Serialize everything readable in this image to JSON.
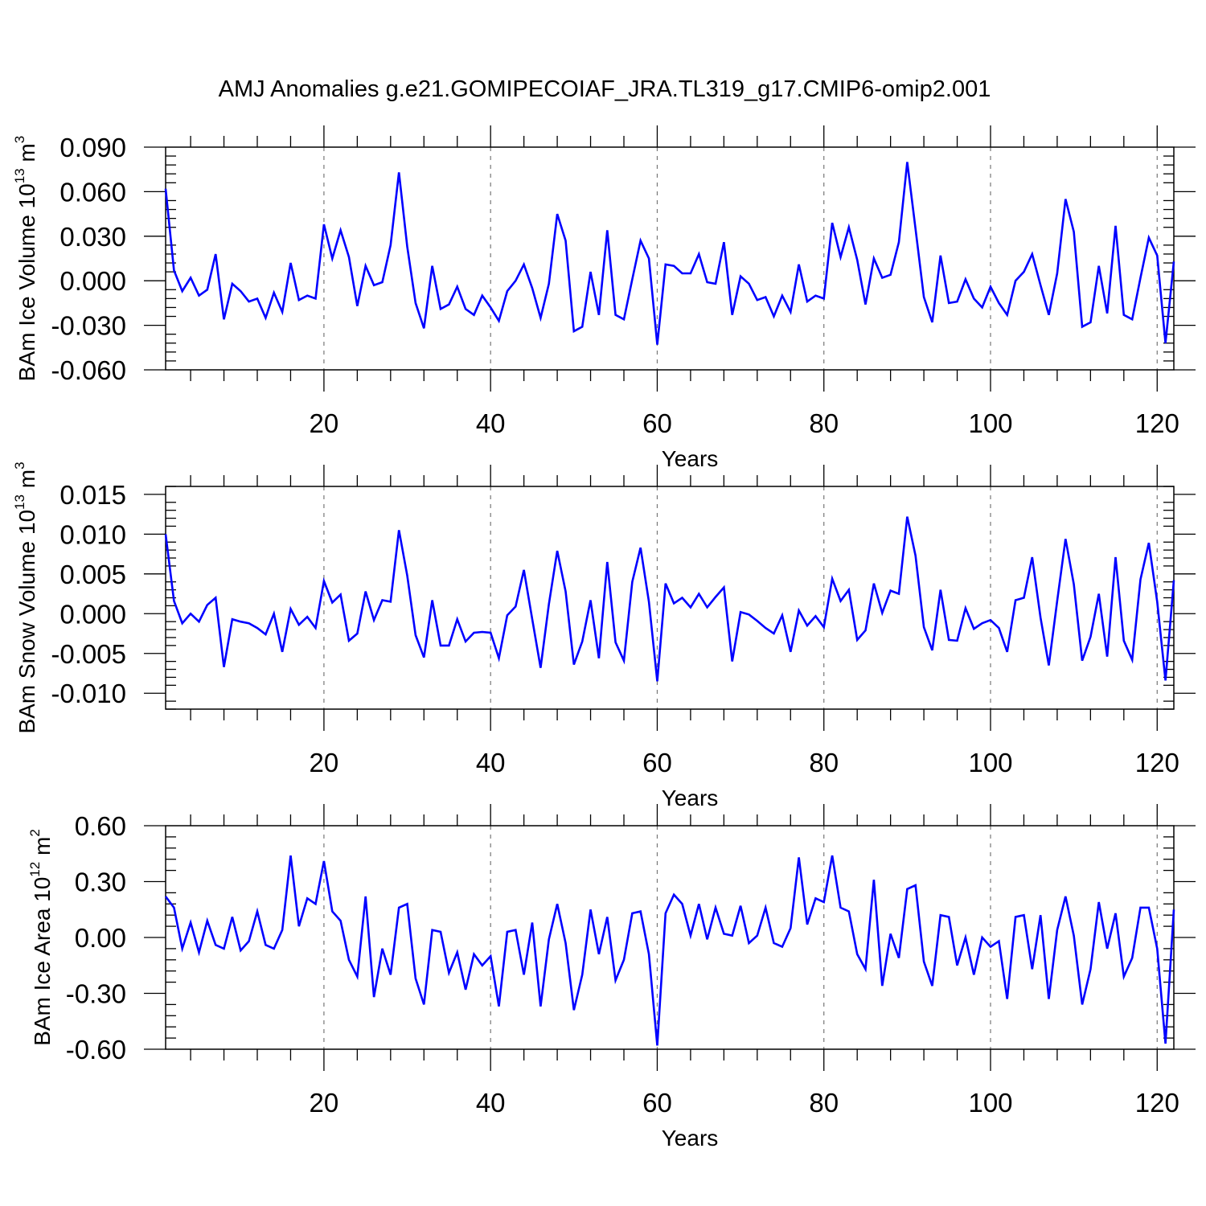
{
  "title": "AMJ Anomalies g.e21.GOMIPECOIAF_JRA.TL319_g17.CMIP6-omip2.001",
  "colors": {
    "line": "#0000ff",
    "grid": "#777777",
    "axes": "#000000",
    "background": "#ffffff"
  },
  "chart_data": [
    {
      "type": "line",
      "ylabel": "BAm Ice Volume 10",
      "ylabel_exp": "13",
      "ylabel_unit": " m",
      "ylabel_unit_exp": "3",
      "xlabel": "Years",
      "xlim": [
        1,
        122
      ],
      "ylim": [
        -0.06,
        0.09
      ],
      "xticks": [
        20,
        40,
        60,
        80,
        100,
        120
      ],
      "xtick_labels": [
        "20",
        "40",
        "60",
        "80",
        "100",
        "120"
      ],
      "yticks": [
        -0.06,
        -0.03,
        0.0,
        0.03,
        0.06,
        0.09
      ],
      "ytick_labels": [
        "-0.060",
        "-0.030",
        "0.000",
        "0.030",
        "0.060",
        "0.090"
      ],
      "grid": "vertical dashed lines at major x ticks",
      "series": [
        {
          "values": [
            0.062,
            0.007,
            -0.007,
            0.002,
            -0.01,
            -0.006,
            0.018,
            -0.026,
            -0.002,
            -0.007,
            -0.014,
            -0.012,
            -0.025,
            -0.008,
            -0.021,
            0.012,
            -0.013,
            -0.01,
            -0.012,
            0.038,
            0.015,
            0.034,
            0.016,
            -0.017,
            0.01,
            -0.003,
            -0.001,
            0.024,
            0.073,
            0.023,
            -0.015,
            -0.032,
            0.01,
            -0.019,
            -0.016,
            -0.004,
            -0.019,
            -0.023,
            -0.01,
            -0.018,
            -0.027,
            -0.007,
            0.0,
            0.011,
            -0.005,
            -0.025,
            -0.002,
            0.045,
            0.027,
            -0.034,
            -0.031,
            0.006,
            -0.023,
            0.034,
            -0.023,
            -0.026,
            0.001,
            0.027,
            0.015,
            -0.043,
            0.011,
            0.01,
            0.005,
            0.005,
            0.018,
            -0.001,
            -0.002,
            0.026,
            -0.023,
            0.003,
            -0.002,
            -0.013,
            -0.011,
            -0.024,
            -0.01,
            -0.021,
            0.011,
            -0.014,
            -0.01,
            -0.012,
            0.039,
            0.016,
            0.036,
            0.014,
            -0.016,
            0.015,
            0.002,
            0.004,
            0.026,
            0.08,
            0.035,
            -0.011,
            -0.028,
            0.017,
            -0.015,
            -0.014,
            0.001,
            -0.012,
            -0.018,
            -0.004,
            -0.015,
            -0.023,
            0.0,
            0.006,
            0.018,
            -0.003,
            -0.023,
            0.005,
            0.055,
            0.033,
            -0.031,
            -0.028,
            0.01,
            -0.022,
            0.037,
            -0.023,
            -0.026,
            0.002,
            0.029,
            0.017,
            -0.042,
            0.013
          ]
        }
      ]
    },
    {
      "type": "line",
      "ylabel": "BAm Snow Volume 10",
      "ylabel_exp": "13",
      "ylabel_unit": " m",
      "ylabel_unit_exp": "3",
      "xlabel": "Years",
      "xlim": [
        1,
        122
      ],
      "ylim": [
        -0.012,
        0.016
      ],
      "xticks": [
        20,
        40,
        60,
        80,
        100,
        120
      ],
      "xtick_labels": [
        "20",
        "40",
        "60",
        "80",
        "100",
        "120"
      ],
      "yticks": [
        -0.01,
        -0.005,
        0.0,
        0.005,
        0.01,
        0.015
      ],
      "ytick_labels": [
        "-0.010",
        "-0.005",
        "0.000",
        "0.005",
        "0.010",
        "0.015"
      ],
      "grid": "vertical dashed lines at major x ticks",
      "series": [
        {
          "values": [
            0.01,
            0.0016,
            -0.0012,
            0.0,
            -0.001,
            0.0011,
            0.002,
            -0.0067,
            -0.0007,
            -0.001,
            -0.0012,
            -0.0018,
            -0.0026,
            0.0,
            -0.0048,
            0.0006,
            -0.0014,
            -0.0004,
            -0.0018,
            0.0041,
            0.0014,
            0.0024,
            -0.0034,
            -0.0025,
            0.0028,
            -0.0008,
            0.0017,
            0.0015,
            0.0105,
            0.0048,
            -0.0027,
            -0.0055,
            0.0017,
            -0.004,
            -0.004,
            -0.0007,
            -0.0035,
            -0.0024,
            -0.0023,
            -0.0024,
            -0.0056,
            -0.0002,
            0.0009,
            0.0055,
            -0.0007,
            -0.0068,
            0.0012,
            0.0079,
            0.0028,
            -0.0064,
            -0.0035,
            0.0017,
            -0.0056,
            0.0065,
            -0.0036,
            -0.0059,
            0.004,
            0.0083,
            0.0015,
            -0.0085,
            0.0038,
            0.0013,
            0.002,
            0.0008,
            0.0025,
            0.0008,
            0.0021,
            0.0033,
            -0.006,
            0.0002,
            -0.0001,
            -0.0009,
            -0.0018,
            -0.0025,
            -0.0002,
            -0.0048,
            0.0004,
            -0.0015,
            -0.0003,
            -0.0017,
            0.0044,
            0.0016,
            0.003,
            -0.0033,
            -0.0021,
            0.0038,
            0.0001,
            0.0029,
            0.0025,
            0.0122,
            0.0073,
            -0.0017,
            -0.0046,
            0.003,
            -0.0033,
            -0.0034,
            0.0007,
            -0.0019,
            -0.0012,
            -0.0008,
            -0.0018,
            -0.0048,
            0.0017,
            0.002,
            0.0071,
            -0.0005,
            -0.0065,
            0.0016,
            0.0094,
            0.0037,
            -0.0059,
            -0.0029,
            0.0025,
            -0.0054,
            0.0071,
            -0.0034,
            -0.0058,
            0.0043,
            0.0089,
            0.0015,
            -0.0084,
            0.0042
          ]
        }
      ]
    },
    {
      "type": "line",
      "ylabel": "BAm Ice Area 10",
      "ylabel_exp": "12",
      "ylabel_unit": " m",
      "ylabel_unit_exp": "2",
      "xlabel": "Years",
      "xlim": [
        1,
        122
      ],
      "ylim": [
        -0.6,
        0.6
      ],
      "xticks": [
        20,
        40,
        60,
        80,
        100,
        120
      ],
      "xtick_labels": [
        "20",
        "40",
        "60",
        "80",
        "100",
        "120"
      ],
      "yticks": [
        -0.6,
        -0.3,
        0.0,
        0.3,
        0.6
      ],
      "ytick_labels": [
        "-0.60",
        "-0.30",
        "0.00",
        "0.30",
        "0.60"
      ],
      "grid": "vertical dashed lines at major x ticks",
      "series": [
        {
          "values": [
            0.22,
            0.16,
            -0.06,
            0.08,
            -0.08,
            0.09,
            -0.04,
            -0.06,
            0.11,
            -0.07,
            -0.02,
            0.14,
            -0.04,
            -0.06,
            0.04,
            0.44,
            0.06,
            0.21,
            0.18,
            0.41,
            0.14,
            0.09,
            -0.12,
            -0.21,
            0.22,
            -0.32,
            -0.06,
            -0.2,
            0.16,
            0.18,
            -0.22,
            -0.36,
            0.04,
            0.03,
            -0.19,
            -0.08,
            -0.28,
            -0.09,
            -0.15,
            -0.1,
            -0.37,
            0.03,
            0.04,
            -0.2,
            0.08,
            -0.37,
            -0.01,
            0.18,
            -0.03,
            -0.39,
            -0.2,
            0.15,
            -0.09,
            0.11,
            -0.23,
            -0.12,
            0.13,
            0.14,
            -0.09,
            -0.58,
            0.13,
            0.23,
            0.18,
            0.01,
            0.18,
            -0.01,
            0.16,
            0.02,
            0.01,
            0.17,
            -0.03,
            0.01,
            0.16,
            -0.03,
            -0.05,
            0.05,
            0.43,
            0.07,
            0.21,
            0.19,
            0.44,
            0.16,
            0.14,
            -0.09,
            -0.17,
            0.31,
            -0.26,
            0.02,
            -0.11,
            0.26,
            0.28,
            -0.13,
            -0.26,
            0.12,
            0.11,
            -0.15,
            0.0,
            -0.2,
            0.0,
            -0.05,
            -0.02,
            -0.33,
            0.11,
            0.12,
            -0.17,
            0.12,
            -0.33,
            0.04,
            0.22,
            0.01,
            -0.36,
            -0.17,
            0.19,
            -0.06,
            0.13,
            -0.21,
            -0.11,
            0.16,
            0.16,
            -0.06,
            -0.57,
            0.15
          ]
        }
      ]
    }
  ]
}
